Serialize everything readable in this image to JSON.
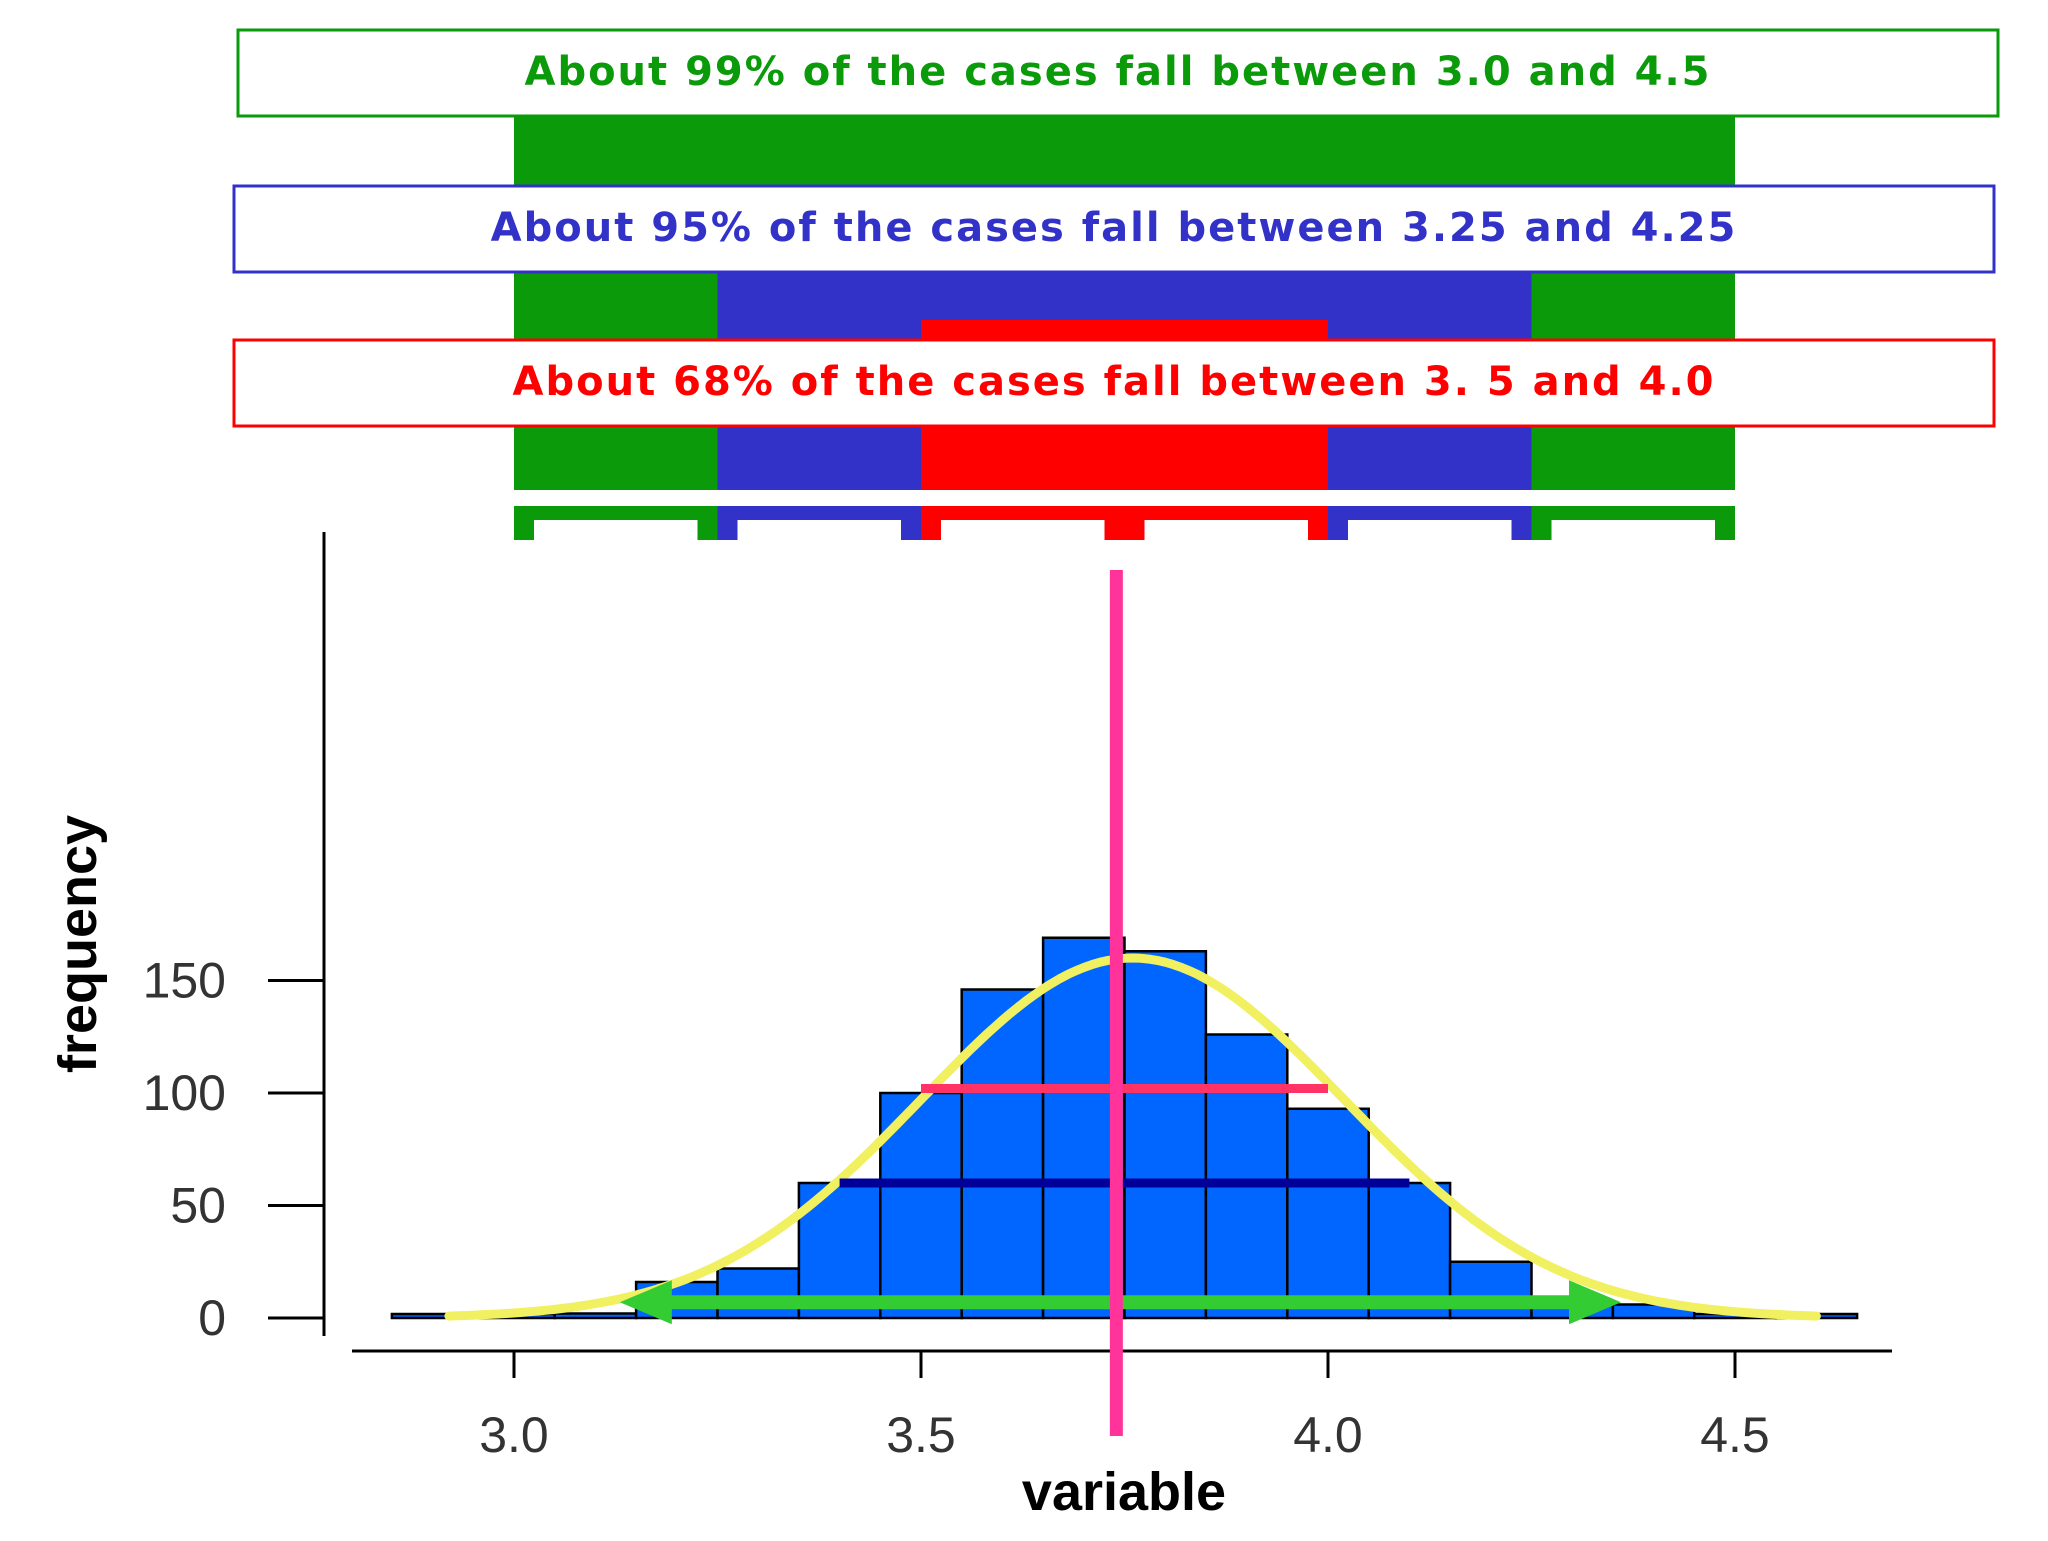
{
  "banners": {
    "p99": {
      "text": "About 99% of the cases fall between 3.0 and 4.5",
      "color": "#0a9a0a",
      "range": [
        3.0,
        4.5
      ]
    },
    "p95": {
      "text": "About 95% of the cases fall between 3.25 and 4.25",
      "color": "#3232c8",
      "range": [
        3.25,
        4.25
      ]
    },
    "p68": {
      "text": "About 68% of the cases fall between 3. 5 and 4.0",
      "color": "#ff0000",
      "range": [
        3.5,
        4.0
      ]
    }
  },
  "chart_data": {
    "type": "bar",
    "xlabel": "variable",
    "ylabel": "frequency",
    "xlim": [
      2.85,
      4.65
    ],
    "ylim": [
      0,
      175
    ],
    "xticks": [
      {
        "value": 3.0,
        "label": "3.0"
      },
      {
        "value": 3.5,
        "label": "3.5"
      },
      {
        "value": 4.0,
        "label": "4.0"
      },
      {
        "value": 4.5,
        "label": "4.5"
      }
    ],
    "yticks": [
      {
        "value": 0,
        "label": "0"
      },
      {
        "value": 50,
        "label": "50"
      },
      {
        "value": 100,
        "label": "100"
      },
      {
        "value": 150,
        "label": "150"
      }
    ],
    "bin_width": 0.1,
    "bins": [
      {
        "x0": 2.85,
        "value": 0
      },
      {
        "x0": 2.95,
        "value": 0
      },
      {
        "x0": 3.05,
        "value": 2
      },
      {
        "x0": 3.15,
        "value": 16
      },
      {
        "x0": 3.25,
        "value": 22
      },
      {
        "x0": 3.35,
        "value": 60
      },
      {
        "x0": 3.45,
        "value": 100
      },
      {
        "x0": 3.55,
        "value": 146
      },
      {
        "x0": 3.65,
        "value": 169
      },
      {
        "x0": 3.75,
        "value": 163
      },
      {
        "x0": 3.85,
        "value": 126
      },
      {
        "x0": 3.95,
        "value": 93
      },
      {
        "x0": 4.05,
        "value": 60
      },
      {
        "x0": 4.15,
        "value": 25
      },
      {
        "x0": 4.25,
        "value": 6
      },
      {
        "x0": 4.35,
        "value": 6
      },
      {
        "x0": 4.45,
        "value": 1
      },
      {
        "x0": 4.55,
        "value": 0
      }
    ],
    "bar_color": "#0066ff",
    "curve": {
      "mean": 3.76,
      "sd": 0.26,
      "peak": 160,
      "x_range": [
        2.92,
        4.6
      ],
      "color": "#f0f060"
    },
    "mean_line": {
      "x": 3.74,
      "color": "#ff3399"
    },
    "sd_lines": [
      {
        "y": 102,
        "x_range": [
          3.5,
          4.0
        ],
        "color": "#ff3366"
      },
      {
        "y": 60,
        "x_range": [
          3.4,
          4.1
        ],
        "color": "#000099"
      }
    ],
    "range_arrow": {
      "y": 7,
      "x_range": [
        3.13,
        4.36
      ],
      "color": "#33cc33"
    }
  }
}
